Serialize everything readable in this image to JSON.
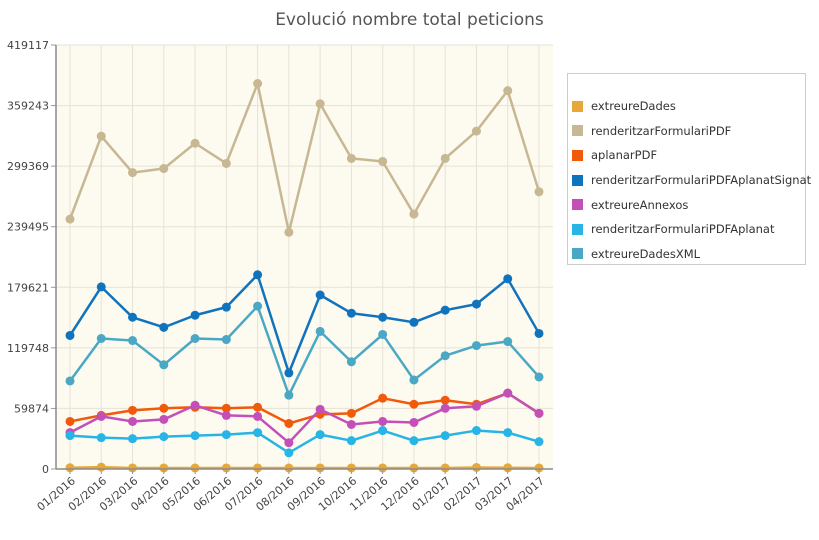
{
  "chart_data": {
    "type": "line",
    "title": "Evolució nombre total peticions",
    "categories": [
      "01/2016",
      "02/2016",
      "03/2016",
      "04/2016",
      "05/2016",
      "06/2016",
      "07/2016",
      "08/2016",
      "09/2016",
      "10/2016",
      "11/2016",
      "12/2016",
      "01/2017",
      "02/2017",
      "03/2017",
      "04/2017"
    ],
    "y_ticks": [
      "0",
      "59874",
      "119748",
      "179621",
      "239495",
      "299369",
      "359243",
      "419117"
    ],
    "ylim": [
      0,
      419117
    ],
    "grid": true,
    "legend_position": "right",
    "series": [
      {
        "name": "extreureDades",
        "color": "#e8a838",
        "values": [
          1200,
          1800,
          1000,
          1000,
          1000,
          1000,
          1000,
          1000,
          1000,
          1000,
          1000,
          1000,
          1000,
          1500,
          1200,
          1000
        ]
      },
      {
        "name": "renderitzarFormulariPDF",
        "color": "#c7b893",
        "values": [
          247000,
          329000,
          293000,
          297000,
          322000,
          302000,
          381000,
          234000,
          361000,
          307000,
          304000,
          252000,
          307000,
          334000,
          374000,
          274000
        ]
      },
      {
        "name": "aplanarPDF",
        "color": "#f05a0a",
        "values": [
          47000,
          53000,
          58000,
          60000,
          61000,
          60000,
          61000,
          45000,
          54000,
          55000,
          70000,
          64000,
          68000,
          64000,
          75000,
          55000
        ]
      },
      {
        "name": "renderitzarFormulariPDFAplanatSignat",
        "color": "#0f73be",
        "values": [
          132000,
          180000,
          150000,
          140000,
          152000,
          160000,
          192000,
          95000,
          172000,
          154000,
          150000,
          145000,
          157000,
          163000,
          188000,
          134000
        ]
      },
      {
        "name": "extreureAnnexos",
        "color": "#c44fb8",
        "values": [
          36000,
          52000,
          47000,
          49000,
          63000,
          53000,
          52000,
          26000,
          59000,
          44000,
          47000,
          46000,
          60000,
          62000,
          75000,
          55000
        ]
      },
      {
        "name": "renderitzarFormulariPDFAplanat",
        "color": "#27b5e6",
        "values": [
          33000,
          31000,
          30000,
          32000,
          33000,
          34000,
          36000,
          16000,
          34000,
          28000,
          38000,
          28000,
          33000,
          38000,
          36000,
          27000
        ]
      },
      {
        "name": "extreureDadesXML",
        "color": "#4ba8c4",
        "values": [
          87000,
          129000,
          127000,
          103000,
          129000,
          128000,
          161000,
          73000,
          136000,
          106000,
          133000,
          88000,
          112000,
          122000,
          126000,
          91000
        ]
      }
    ]
  }
}
